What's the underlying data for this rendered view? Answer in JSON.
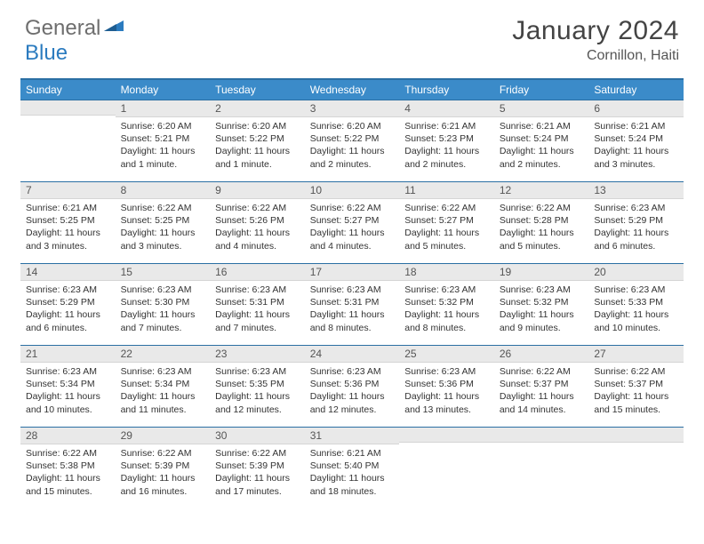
{
  "logo": {
    "gray": "General",
    "blue": "Blue"
  },
  "title": "January 2024",
  "location": "Cornillon, Haiti",
  "colors": {
    "header_bg": "#3b8bc9",
    "header_border": "#2b6fa3",
    "daynum_bg": "#e9e9e9",
    "logo_gray": "#6e6e6e",
    "logo_blue": "#2b7bbf"
  },
  "weekdays": [
    "Sunday",
    "Monday",
    "Tuesday",
    "Wednesday",
    "Thursday",
    "Friday",
    "Saturday"
  ],
  "weeks": [
    [
      {
        "day": "",
        "sunrise": "",
        "sunset": "",
        "daylight1": "",
        "daylight2": ""
      },
      {
        "day": "1",
        "sunrise": "Sunrise: 6:20 AM",
        "sunset": "Sunset: 5:21 PM",
        "daylight1": "Daylight: 11 hours",
        "daylight2": "and 1 minute."
      },
      {
        "day": "2",
        "sunrise": "Sunrise: 6:20 AM",
        "sunset": "Sunset: 5:22 PM",
        "daylight1": "Daylight: 11 hours",
        "daylight2": "and 1 minute."
      },
      {
        "day": "3",
        "sunrise": "Sunrise: 6:20 AM",
        "sunset": "Sunset: 5:22 PM",
        "daylight1": "Daylight: 11 hours",
        "daylight2": "and 2 minutes."
      },
      {
        "day": "4",
        "sunrise": "Sunrise: 6:21 AM",
        "sunset": "Sunset: 5:23 PM",
        "daylight1": "Daylight: 11 hours",
        "daylight2": "and 2 minutes."
      },
      {
        "day": "5",
        "sunrise": "Sunrise: 6:21 AM",
        "sunset": "Sunset: 5:24 PM",
        "daylight1": "Daylight: 11 hours",
        "daylight2": "and 2 minutes."
      },
      {
        "day": "6",
        "sunrise": "Sunrise: 6:21 AM",
        "sunset": "Sunset: 5:24 PM",
        "daylight1": "Daylight: 11 hours",
        "daylight2": "and 3 minutes."
      }
    ],
    [
      {
        "day": "7",
        "sunrise": "Sunrise: 6:21 AM",
        "sunset": "Sunset: 5:25 PM",
        "daylight1": "Daylight: 11 hours",
        "daylight2": "and 3 minutes."
      },
      {
        "day": "8",
        "sunrise": "Sunrise: 6:22 AM",
        "sunset": "Sunset: 5:25 PM",
        "daylight1": "Daylight: 11 hours",
        "daylight2": "and 3 minutes."
      },
      {
        "day": "9",
        "sunrise": "Sunrise: 6:22 AM",
        "sunset": "Sunset: 5:26 PM",
        "daylight1": "Daylight: 11 hours",
        "daylight2": "and 4 minutes."
      },
      {
        "day": "10",
        "sunrise": "Sunrise: 6:22 AM",
        "sunset": "Sunset: 5:27 PM",
        "daylight1": "Daylight: 11 hours",
        "daylight2": "and 4 minutes."
      },
      {
        "day": "11",
        "sunrise": "Sunrise: 6:22 AM",
        "sunset": "Sunset: 5:27 PM",
        "daylight1": "Daylight: 11 hours",
        "daylight2": "and 5 minutes."
      },
      {
        "day": "12",
        "sunrise": "Sunrise: 6:22 AM",
        "sunset": "Sunset: 5:28 PM",
        "daylight1": "Daylight: 11 hours",
        "daylight2": "and 5 minutes."
      },
      {
        "day": "13",
        "sunrise": "Sunrise: 6:23 AM",
        "sunset": "Sunset: 5:29 PM",
        "daylight1": "Daylight: 11 hours",
        "daylight2": "and 6 minutes."
      }
    ],
    [
      {
        "day": "14",
        "sunrise": "Sunrise: 6:23 AM",
        "sunset": "Sunset: 5:29 PM",
        "daylight1": "Daylight: 11 hours",
        "daylight2": "and 6 minutes."
      },
      {
        "day": "15",
        "sunrise": "Sunrise: 6:23 AM",
        "sunset": "Sunset: 5:30 PM",
        "daylight1": "Daylight: 11 hours",
        "daylight2": "and 7 minutes."
      },
      {
        "day": "16",
        "sunrise": "Sunrise: 6:23 AM",
        "sunset": "Sunset: 5:31 PM",
        "daylight1": "Daylight: 11 hours",
        "daylight2": "and 7 minutes."
      },
      {
        "day": "17",
        "sunrise": "Sunrise: 6:23 AM",
        "sunset": "Sunset: 5:31 PM",
        "daylight1": "Daylight: 11 hours",
        "daylight2": "and 8 minutes."
      },
      {
        "day": "18",
        "sunrise": "Sunrise: 6:23 AM",
        "sunset": "Sunset: 5:32 PM",
        "daylight1": "Daylight: 11 hours",
        "daylight2": "and 8 minutes."
      },
      {
        "day": "19",
        "sunrise": "Sunrise: 6:23 AM",
        "sunset": "Sunset: 5:32 PM",
        "daylight1": "Daylight: 11 hours",
        "daylight2": "and 9 minutes."
      },
      {
        "day": "20",
        "sunrise": "Sunrise: 6:23 AM",
        "sunset": "Sunset: 5:33 PM",
        "daylight1": "Daylight: 11 hours",
        "daylight2": "and 10 minutes."
      }
    ],
    [
      {
        "day": "21",
        "sunrise": "Sunrise: 6:23 AM",
        "sunset": "Sunset: 5:34 PM",
        "daylight1": "Daylight: 11 hours",
        "daylight2": "and 10 minutes."
      },
      {
        "day": "22",
        "sunrise": "Sunrise: 6:23 AM",
        "sunset": "Sunset: 5:34 PM",
        "daylight1": "Daylight: 11 hours",
        "daylight2": "and 11 minutes."
      },
      {
        "day": "23",
        "sunrise": "Sunrise: 6:23 AM",
        "sunset": "Sunset: 5:35 PM",
        "daylight1": "Daylight: 11 hours",
        "daylight2": "and 12 minutes."
      },
      {
        "day": "24",
        "sunrise": "Sunrise: 6:23 AM",
        "sunset": "Sunset: 5:36 PM",
        "daylight1": "Daylight: 11 hours",
        "daylight2": "and 12 minutes."
      },
      {
        "day": "25",
        "sunrise": "Sunrise: 6:23 AM",
        "sunset": "Sunset: 5:36 PM",
        "daylight1": "Daylight: 11 hours",
        "daylight2": "and 13 minutes."
      },
      {
        "day": "26",
        "sunrise": "Sunrise: 6:22 AM",
        "sunset": "Sunset: 5:37 PM",
        "daylight1": "Daylight: 11 hours",
        "daylight2": "and 14 minutes."
      },
      {
        "day": "27",
        "sunrise": "Sunrise: 6:22 AM",
        "sunset": "Sunset: 5:37 PM",
        "daylight1": "Daylight: 11 hours",
        "daylight2": "and 15 minutes."
      }
    ],
    [
      {
        "day": "28",
        "sunrise": "Sunrise: 6:22 AM",
        "sunset": "Sunset: 5:38 PM",
        "daylight1": "Daylight: 11 hours",
        "daylight2": "and 15 minutes."
      },
      {
        "day": "29",
        "sunrise": "Sunrise: 6:22 AM",
        "sunset": "Sunset: 5:39 PM",
        "daylight1": "Daylight: 11 hours",
        "daylight2": "and 16 minutes."
      },
      {
        "day": "30",
        "sunrise": "Sunrise: 6:22 AM",
        "sunset": "Sunset: 5:39 PM",
        "daylight1": "Daylight: 11 hours",
        "daylight2": "and 17 minutes."
      },
      {
        "day": "31",
        "sunrise": "Sunrise: 6:21 AM",
        "sunset": "Sunset: 5:40 PM",
        "daylight1": "Daylight: 11 hours",
        "daylight2": "and 18 minutes."
      },
      {
        "day": "",
        "sunrise": "",
        "sunset": "",
        "daylight1": "",
        "daylight2": ""
      },
      {
        "day": "",
        "sunrise": "",
        "sunset": "",
        "daylight1": "",
        "daylight2": ""
      },
      {
        "day": "",
        "sunrise": "",
        "sunset": "",
        "daylight1": "",
        "daylight2": ""
      }
    ]
  ]
}
